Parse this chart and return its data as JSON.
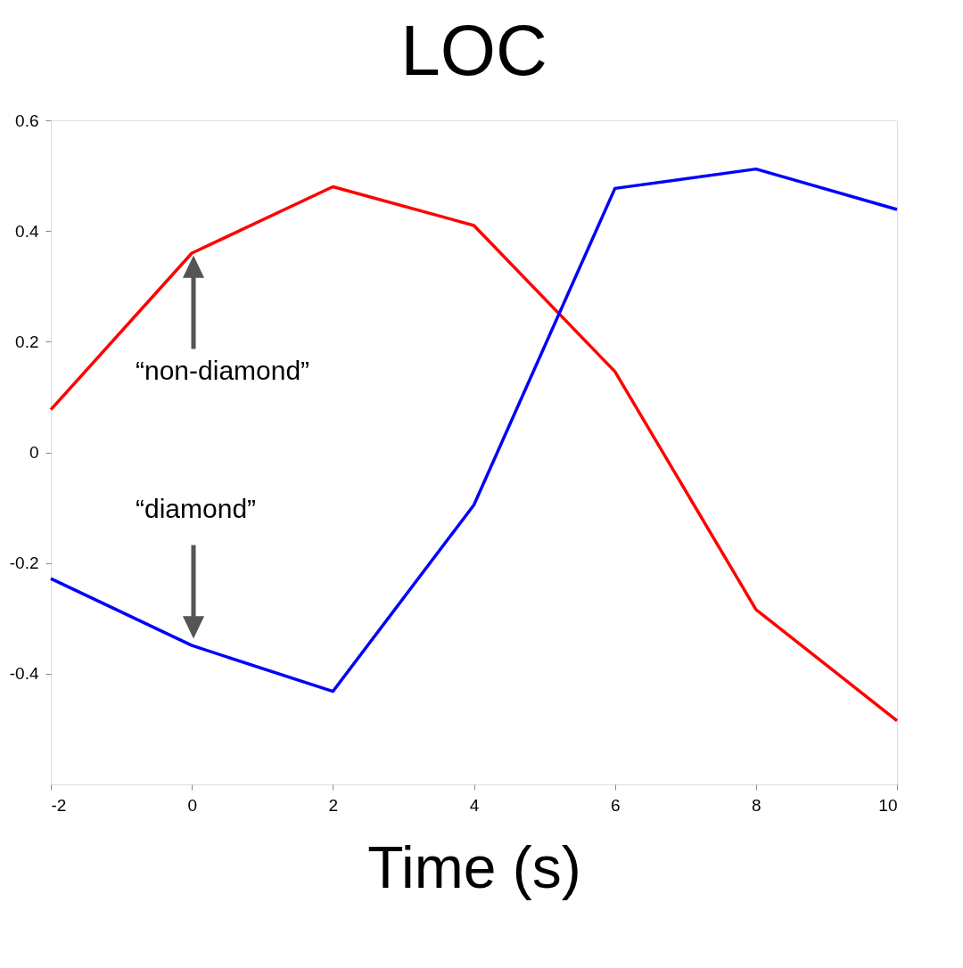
{
  "chart_data": {
    "type": "line",
    "title": "LOC",
    "xlabel": "Time (s)",
    "x": [
      -2,
      0,
      2,
      4,
      6,
      8,
      10
    ],
    "series": [
      {
        "color": "#ff0000",
        "values": [
          0.077,
          0.36,
          0.48,
          0.41,
          0.146,
          -0.284,
          -0.485
        ]
      },
      {
        "color": "#0000ff",
        "values": [
          -0.228,
          -0.349,
          -0.432,
          -0.095,
          0.477,
          0.512,
          0.439
        ]
      }
    ],
    "xlim": [
      -2,
      10
    ],
    "xticks": [
      -2,
      0,
      2,
      4,
      6,
      8,
      10
    ],
    "ylim": [
      -0.6,
      0.6
    ],
    "yticks": [
      -0.4,
      -0.2,
      0,
      0.2,
      0.4,
      0.6
    ],
    "grid": false,
    "marker": "none",
    "line_style": "solid",
    "annotations": [
      "“non-diamond”",
      "“diamond”"
    ]
  }
}
